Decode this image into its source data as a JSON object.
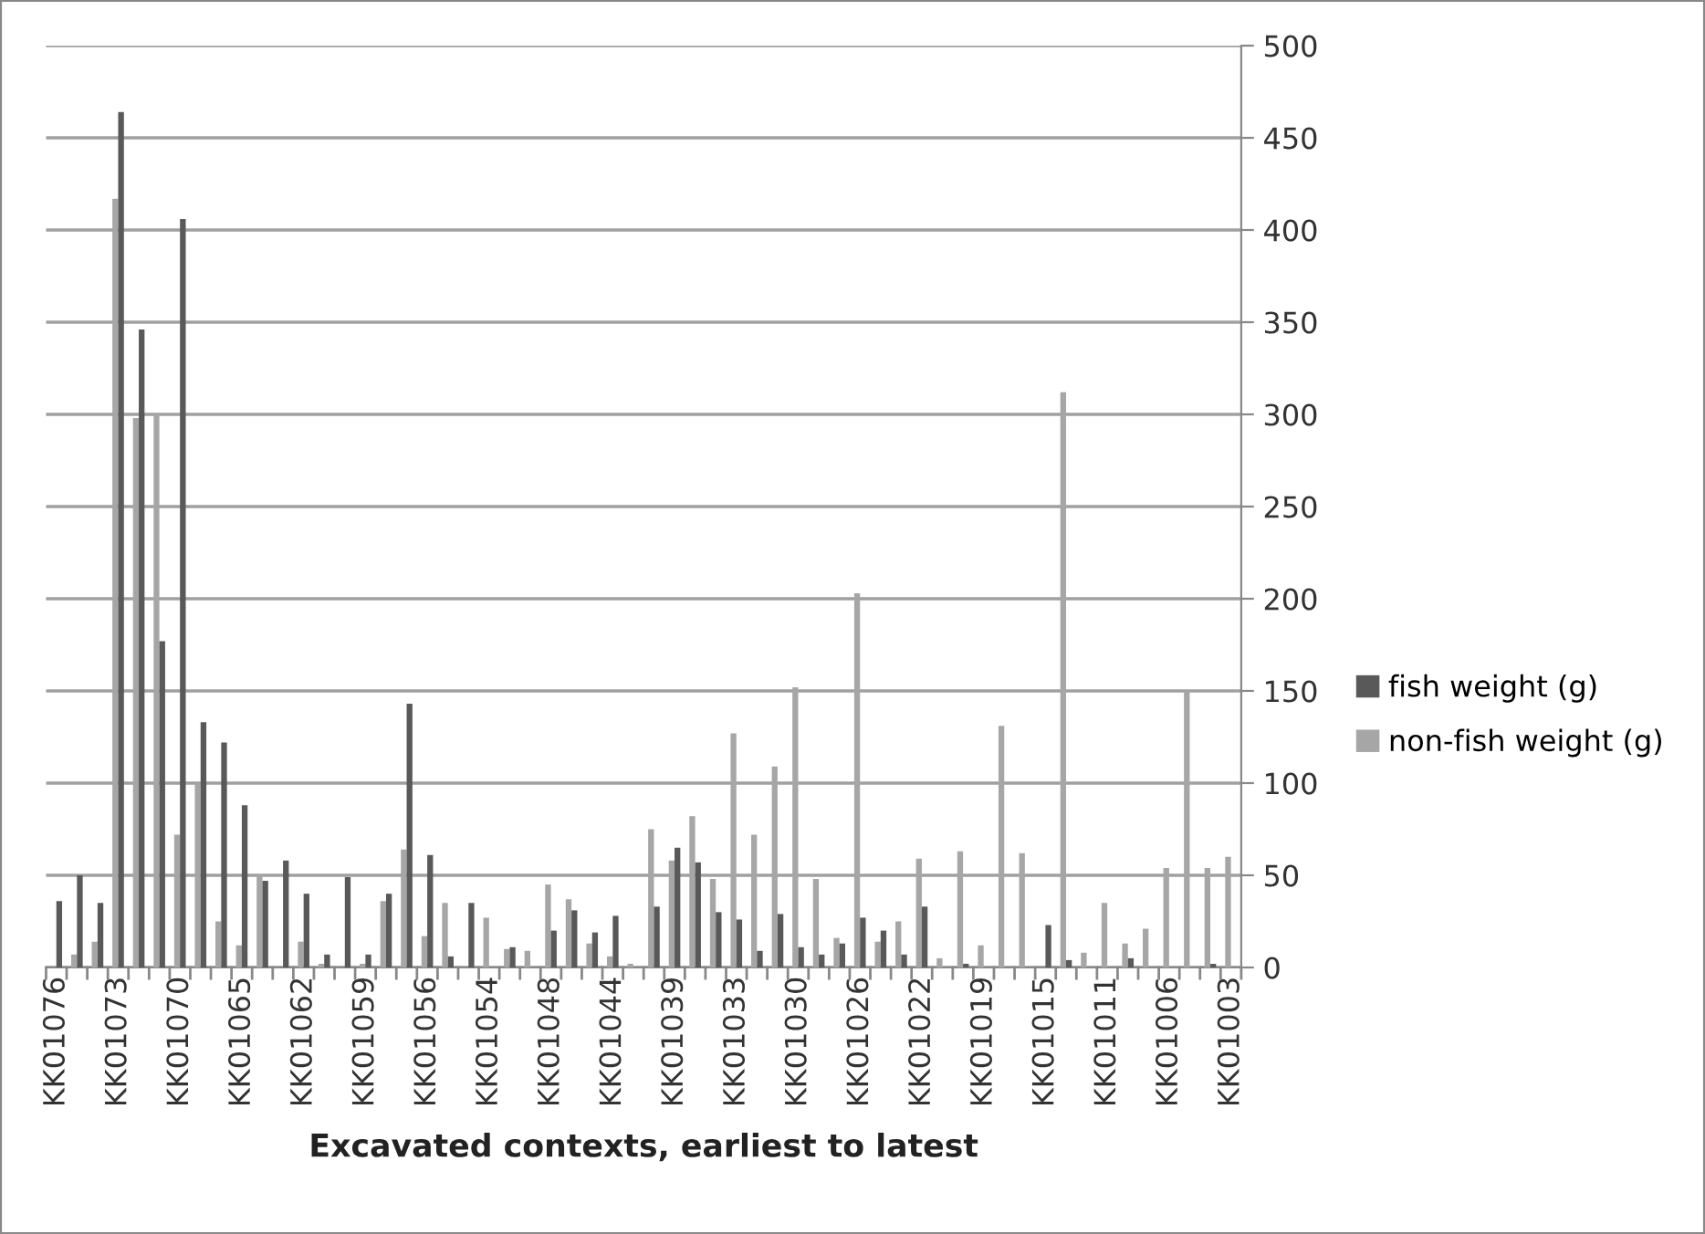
{
  "chart_data": {
    "type": "bar",
    "xlabel": "Excavated contexts, earliest to latest",
    "categories": [
      "KK01076",
      null,
      null,
      "KK01073",
      null,
      null,
      "KK01070",
      null,
      null,
      "KK01065",
      null,
      null,
      "KK01062",
      null,
      null,
      "KK01059",
      null,
      null,
      "KK01056",
      null,
      null,
      "KK01054",
      null,
      null,
      "KK01048",
      null,
      null,
      "KK01044",
      null,
      null,
      "KK01039",
      null,
      null,
      "KK01033",
      null,
      null,
      "KK01030",
      null,
      null,
      "KK01026",
      null,
      null,
      "KK01022",
      null,
      null,
      "KK01019",
      null,
      null,
      "KK01015",
      null,
      null,
      "KK01011",
      null,
      null,
      "KK01006",
      null,
      null,
      "KK01003"
    ],
    "series": [
      {
        "name": "fish weight (g)",
        "color": "#595959",
        "values": [
          36,
          50,
          35,
          464,
          346,
          177,
          406,
          133,
          122,
          88,
          47,
          58,
          40,
          7,
          49,
          7,
          40,
          143,
          61,
          6,
          35,
          0,
          11,
          0,
          20,
          31,
          19,
          28,
          null,
          33,
          65,
          57,
          30,
          26,
          9,
          29,
          11,
          7,
          13,
          27,
          20,
          7,
          33,
          0,
          2,
          null,
          0,
          0,
          23,
          4,
          0,
          0,
          5,
          0,
          0,
          0,
          2,
          0
        ]
      },
      {
        "name": "non-fish weight (g)",
        "color": "#a6a6a6",
        "values": [
          0,
          7,
          14,
          417,
          298,
          300,
          72,
          100,
          25,
          12,
          50,
          0,
          14,
          2,
          0,
          2,
          36,
          64,
          17,
          35,
          0,
          27,
          10,
          9,
          45,
          37,
          13,
          6,
          2,
          75,
          58,
          82,
          48,
          127,
          72,
          109,
          152,
          48,
          16,
          203,
          14,
          25,
          59,
          5,
          63,
          12,
          131,
          62,
          0,
          312,
          8,
          35,
          13,
          21,
          54,
          150,
          54,
          60
        ]
      }
    ],
    "ylim": [
      0,
      500
    ],
    "yticks": [
      0,
      50,
      100,
      150,
      200,
      250,
      300,
      350,
      400,
      450,
      500
    ],
    "grid": "y",
    "legend": "right"
  }
}
